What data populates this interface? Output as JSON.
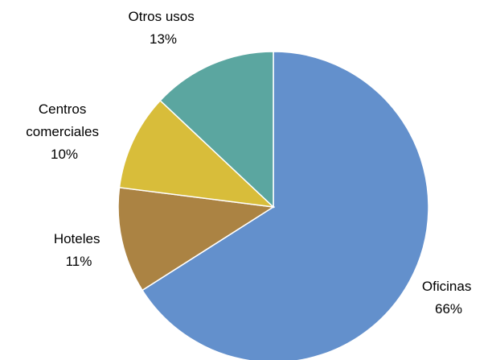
{
  "chart_data": {
    "type": "pie",
    "title": "",
    "start_angle_deg": 0,
    "direction": "clockwise",
    "slices": [
      {
        "label_lines": [
          "Oficinas"
        ],
        "pct_label": "66%",
        "value": 66,
        "color": "#6390CC"
      },
      {
        "label_lines": [
          "Hoteles"
        ],
        "pct_label": "11%",
        "value": 11,
        "color": "#AB8343"
      },
      {
        "label_lines": [
          "Centros",
          "comerciales"
        ],
        "pct_label": "10%",
        "value": 10,
        "color": "#D8BD3A"
      },
      {
        "label_lines": [
          "Otros usos"
        ],
        "pct_label": "13%",
        "value": 13,
        "color": "#5BA6A0"
      }
    ]
  }
}
